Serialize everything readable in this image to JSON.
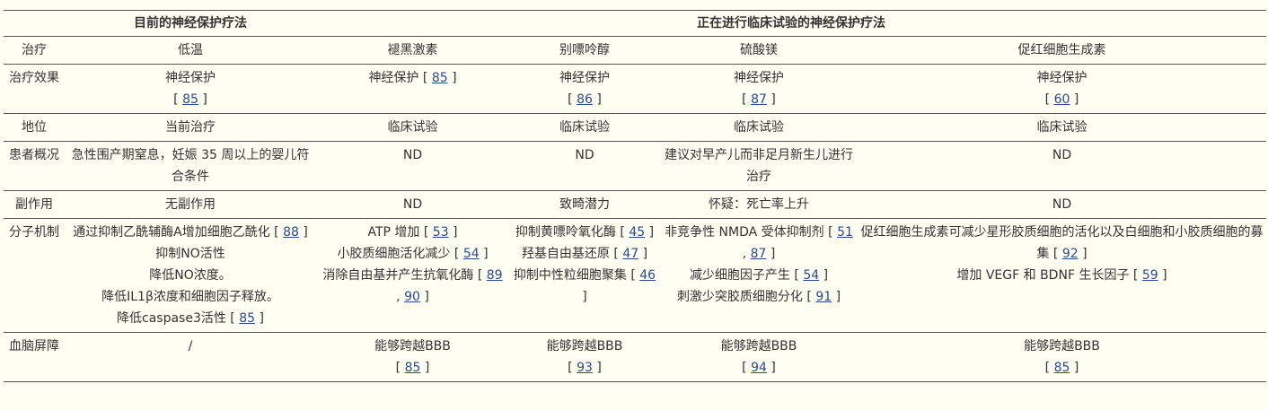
{
  "headers": {
    "current": "目前的神经保护疗法",
    "trials": "正在进行临床试验的神经保护疗法"
  },
  "rows": [
    {
      "label": "治疗",
      "cells": [
        [
          {
            "text": "低温"
          }
        ],
        [
          {
            "text": "褪黑激素"
          }
        ],
        [
          {
            "text": "别嘌呤醇"
          }
        ],
        [
          {
            "text": "硫酸镁"
          }
        ],
        [
          {
            "text": "促红细胞生成素"
          }
        ]
      ]
    },
    {
      "label": "治疗效果",
      "cells": [
        [
          {
            "text": "神经保护",
            "refs": [
              "85"
            ],
            "br": true
          }
        ],
        [
          {
            "text": "神经保护",
            "refs": [
              "85"
            ]
          }
        ],
        [
          {
            "text": "神经保护",
            "refs": [
              "86"
            ],
            "br": true
          }
        ],
        [
          {
            "text": "神经保护",
            "refs": [
              "87"
            ],
            "br": true
          }
        ],
        [
          {
            "text": "神经保护",
            "refs": [
              "60"
            ],
            "br": true
          }
        ]
      ]
    },
    {
      "label": "地位",
      "cells": [
        [
          {
            "text": "当前治疗"
          }
        ],
        [
          {
            "text": "临床试验"
          }
        ],
        [
          {
            "text": "临床试验"
          }
        ],
        [
          {
            "text": "临床试验"
          }
        ],
        [
          {
            "text": "临床试验"
          }
        ]
      ]
    },
    {
      "label": "患者概况",
      "cells": [
        [
          {
            "text": "急性围产期窒息，妊娠 35 周以上的婴儿符合条件"
          }
        ],
        [
          {
            "text": "ND"
          }
        ],
        [
          {
            "text": "ND"
          }
        ],
        [
          {
            "text": "建议对早产儿而非足月新生儿进行治疗"
          }
        ],
        [
          {
            "text": "ND"
          }
        ]
      ]
    },
    {
      "label": "副作用",
      "cells": [
        [
          {
            "text": "无副作用"
          }
        ],
        [
          {
            "text": "ND"
          }
        ],
        [
          {
            "text": "致畸潜力"
          }
        ],
        [
          {
            "text": "怀疑：死亡率上升"
          }
        ],
        [
          {
            "text": "ND"
          }
        ]
      ]
    },
    {
      "label": "分子机制",
      "cells": [
        [
          {
            "text": "通过抑制乙酰辅酶A增加细胞乙酰化",
            "refs": [
              "88"
            ]
          },
          {
            "text": "抑制NO活性"
          },
          {
            "text": "降低NO浓度。"
          },
          {
            "text": "降低IL1β浓度和细胞因子释放。"
          },
          {
            "text": "降低caspase3活性",
            "refs": [
              "85"
            ]
          }
        ],
        [
          {
            "text": "ATP 增加",
            "refs": [
              "53"
            ]
          },
          {
            "text": "小胶质细胞活化减少",
            "refs": [
              "54"
            ]
          },
          {
            "text": "消除自由基并产生抗氧化酶",
            "refs": [
              "89",
              "90"
            ]
          }
        ],
        [
          {
            "text": "抑制黄嘌呤氧化酶",
            "refs": [
              "45"
            ]
          },
          {
            "text": "羟基自由基还原",
            "refs": [
              "47"
            ]
          },
          {
            "text": "抑制中性粒细胞聚集",
            "refs": [
              "46"
            ]
          }
        ],
        [
          {
            "text": "非竞争性 NMDA 受体抑制剂",
            "refs": [
              "51",
              "87"
            ]
          },
          {
            "text": "减少细胞因子产生",
            "refs": [
              "54"
            ]
          },
          {
            "text": "刺激少突胶质细胞分化",
            "refs": [
              "91"
            ]
          }
        ],
        [
          {
            "text": "促红细胞生成素可减少星形胶质细胞的活化以及白细胞和小胶质细胞的募集",
            "refs": [
              "92"
            ]
          },
          {
            "text": "增加 VEGF 和 BDNF 生长因子",
            "refs": [
              "59"
            ]
          }
        ]
      ]
    },
    {
      "label": "血脑屏障",
      "cells": [
        [
          {
            "text": "/"
          }
        ],
        [
          {
            "text": "能够跨越BBB",
            "refs": [
              "85"
            ],
            "br": true
          }
        ],
        [
          {
            "text": "能够跨越BBB",
            "refs": [
              "93"
            ],
            "br": true
          }
        ],
        [
          {
            "text": "能够跨越BBB",
            "refs": [
              "94"
            ],
            "br": true
          }
        ],
        [
          {
            "text": "能够跨越BBB",
            "refs": [
              "85"
            ],
            "br": true
          }
        ]
      ]
    }
  ],
  "colors": {
    "background": "#fffef2",
    "text": "#333333",
    "link": "#2a4a8a",
    "rule": "#555555"
  }
}
